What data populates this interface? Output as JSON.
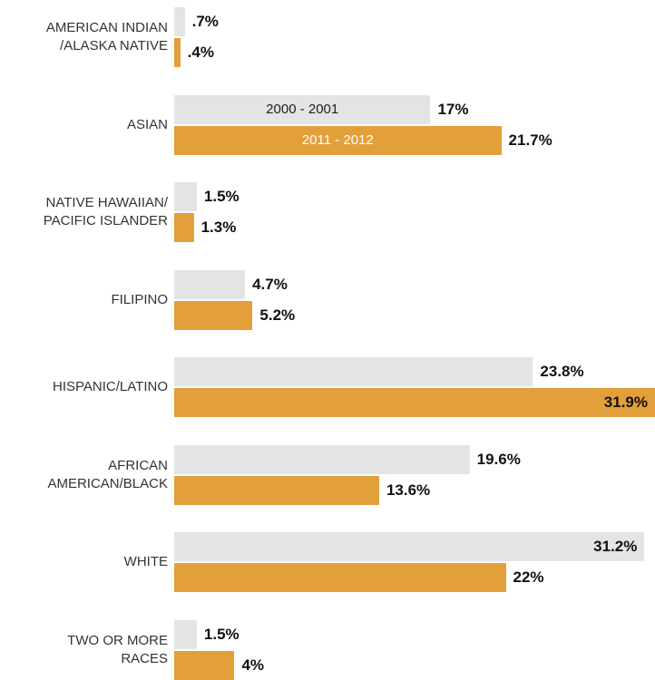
{
  "chart_data": {
    "type": "bar",
    "orientation": "horizontal",
    "categories": [
      "AMERICAN INDIAN\n/ALASKA NATIVE",
      "ASIAN",
      "NATIVE HAWAIIAN/\nPACIFIC ISLANDER",
      "FILIPINO",
      "HISPANIC/LATINO",
      "AFRICAN\nAMERICAN/BLACK",
      "WHITE",
      "TWO OR MORE\nRACES"
    ],
    "series": [
      {
        "name": "2000 - 2001",
        "color": "#e4e4e4",
        "values": [
          0.7,
          17,
          1.5,
          4.7,
          23.8,
          19.6,
          31.2,
          1.5
        ],
        "value_labels": [
          ".7%",
          "17%",
          "1.5%",
          "4.7%",
          "23.8%",
          "19.6%",
          "31.2%",
          "1.5%"
        ]
      },
      {
        "name": "2011 - 2012",
        "color": "#e3a03a",
        "values": [
          0.4,
          21.7,
          1.3,
          5.2,
          31.9,
          13.6,
          22,
          4
        ],
        "value_labels": [
          ".4%",
          "21.7%",
          "1.3%",
          "5.2%",
          "31.9%",
          "13.6%",
          "22%",
          "4%"
        ]
      }
    ],
    "xlim": [
      0,
      31.9
    ]
  }
}
